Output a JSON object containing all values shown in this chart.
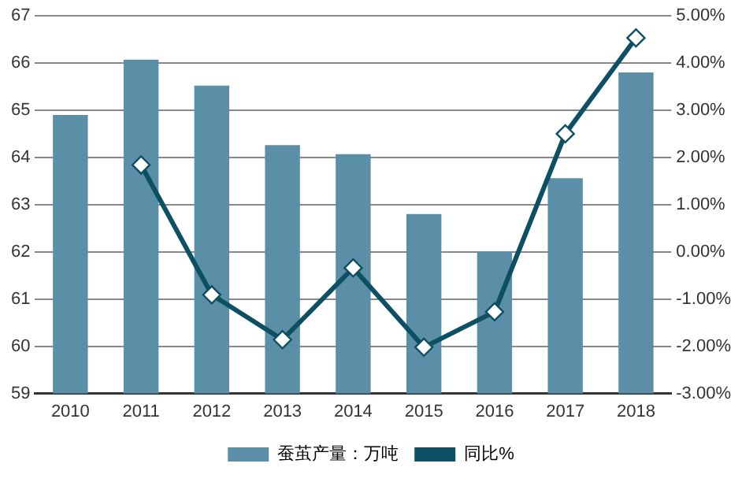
{
  "chart_data": {
    "type": "bar",
    "categories": [
      "2010",
      "2011",
      "2012",
      "2013",
      "2014",
      "2015",
      "2016",
      "2017",
      "2018"
    ],
    "series": [
      {
        "name": "蚕茧产量：万吨",
        "color": "#5b8fa8",
        "values": [
          64.9,
          66.07,
          65.52,
          64.26,
          64.07,
          62.8,
          62.0,
          63.56,
          65.8
        ]
      },
      {
        "name": "同比%",
        "type": "line",
        "axis": "y2",
        "color": "#0d4f63",
        "marker": "diamond",
        "values": [
          null,
          1.84,
          -0.91,
          -1.86,
          -0.34,
          -2.02,
          -1.27,
          2.5,
          4.53
        ]
      }
    ],
    "ylim": [
      59,
      67
    ],
    "yticks": [
      59,
      60,
      61,
      62,
      63,
      64,
      65,
      66,
      67
    ],
    "y2lim": [
      -3,
      5
    ],
    "y2ticks": [
      {
        "value": -3,
        "label": "-3.00%"
      },
      {
        "value": -2,
        "label": "-2.00%"
      },
      {
        "value": -1,
        "label": "-1.00%"
      },
      {
        "value": 0,
        "label": "0.00%"
      },
      {
        "value": 1,
        "label": "1.00%"
      },
      {
        "value": 2,
        "label": "2.00%"
      },
      {
        "value": 3,
        "label": "3.00%"
      },
      {
        "value": 4,
        "label": "4.00%"
      },
      {
        "value": 5,
        "label": "5.00%"
      }
    ],
    "grid": "y",
    "legend": "bottom"
  }
}
